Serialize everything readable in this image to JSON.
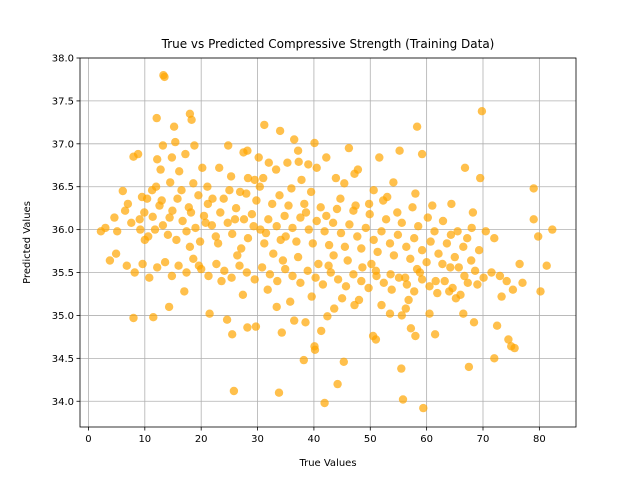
{
  "chart_data": {
    "type": "scatter",
    "title": "True vs Predicted Compressive Strength (Training Data)",
    "xlabel": "True Values",
    "ylabel": "Predicted Values",
    "xlim": [
      -1.5,
      86.5
    ],
    "ylim": [
      33.7,
      38.0
    ],
    "x_ticks": [
      "0",
      "10",
      "20",
      "30",
      "40",
      "50",
      "60",
      "70",
      "80"
    ],
    "y_ticks": [
      "34.0",
      "34.5",
      "35.0",
      "35.5",
      "36.0",
      "36.5",
      "37.0",
      "37.5",
      "38.0"
    ],
    "grid": true,
    "marker_color": "#ffa500",
    "marker_alpha": 0.7,
    "points": [
      [
        13.3,
        37.8
      ],
      [
        13.5,
        37.78
      ],
      [
        12.1,
        37.3
      ],
      [
        15.2,
        37.2
      ],
      [
        18.0,
        37.35
      ],
      [
        18.3,
        37.28
      ],
      [
        31.2,
        37.22
      ],
      [
        69.8,
        37.38
      ],
      [
        34.0,
        37.15
      ],
      [
        58.3,
        37.2
      ],
      [
        8.0,
        36.85
      ],
      [
        8.8,
        36.88
      ],
      [
        12.2,
        36.82
      ],
      [
        13.2,
        36.98
      ],
      [
        15.4,
        37.02
      ],
      [
        14.8,
        36.84
      ],
      [
        17.2,
        36.88
      ],
      [
        18.8,
        36.98
      ],
      [
        24.8,
        36.98
      ],
      [
        27.5,
        36.9
      ],
      [
        28.2,
        36.92
      ],
      [
        30.2,
        36.84
      ],
      [
        36.5,
        37.05
      ],
      [
        37.2,
        36.92
      ],
      [
        40.1,
        37.01
      ],
      [
        42.2,
        36.84
      ],
      [
        46.2,
        36.95
      ],
      [
        51.6,
        36.84
      ],
      [
        55.2,
        36.92
      ],
      [
        59.2,
        36.88
      ],
      [
        66.8,
        36.72
      ],
      [
        6.1,
        36.45
      ],
      [
        9.5,
        36.38
      ],
      [
        11.3,
        36.46
      ],
      [
        12.0,
        36.5
      ],
      [
        14.5,
        36.55
      ],
      [
        16.1,
        36.68
      ],
      [
        18.6,
        36.54
      ],
      [
        23.2,
        36.72
      ],
      [
        25.3,
        36.62
      ],
      [
        28.3,
        36.6
      ],
      [
        31.0,
        36.6
      ],
      [
        33.3,
        36.7
      ],
      [
        35.3,
        36.78
      ],
      [
        37.3,
        36.79
      ],
      [
        40.5,
        36.72
      ],
      [
        43.9,
        36.6
      ],
      [
        47.2,
        36.65
      ],
      [
        50.6,
        36.46
      ],
      [
        54.1,
        36.55
      ],
      [
        58.0,
        36.42
      ],
      [
        64.4,
        36.3
      ],
      [
        69.5,
        36.6
      ],
      [
        79.0,
        36.48
      ],
      [
        2.2,
        35.98
      ],
      [
        3.0,
        36.02
      ],
      [
        4.6,
        36.14
      ],
      [
        6.5,
        36.22
      ],
      [
        7.6,
        36.08
      ],
      [
        9.2,
        36.0
      ],
      [
        9.9,
        36.2
      ],
      [
        10.6,
        35.92
      ],
      [
        11.4,
        36.15
      ],
      [
        12.6,
        36.28
      ],
      [
        13.2,
        36.05
      ],
      [
        14.1,
        35.94
      ],
      [
        14.9,
        36.22
      ],
      [
        15.8,
        36.36
      ],
      [
        16.7,
        36.1
      ],
      [
        17.4,
        35.98
      ],
      [
        18.2,
        36.2
      ],
      [
        19.0,
        36.02
      ],
      [
        19.8,
        35.86
      ],
      [
        20.5,
        36.16
      ],
      [
        21.2,
        36.3
      ],
      [
        21.9,
        36.05
      ],
      [
        22.6,
        35.92
      ],
      [
        23.4,
        36.2
      ],
      [
        24.0,
        36.36
      ],
      [
        24.7,
        36.08
      ],
      [
        25.5,
        35.95
      ],
      [
        26.2,
        36.25
      ],
      [
        26.9,
        36.44
      ],
      [
        27.6,
        36.12
      ],
      [
        28.3,
        35.9
      ],
      [
        29.0,
        36.18
      ],
      [
        29.8,
        36.34
      ],
      [
        30.5,
        36.0
      ],
      [
        31.2,
        35.84
      ],
      [
        31.9,
        36.12
      ],
      [
        32.6,
        36.3
      ],
      [
        33.4,
        36.04
      ],
      [
        34.1,
        35.88
      ],
      [
        34.8,
        36.16
      ],
      [
        35.5,
        36.28
      ],
      [
        36.2,
        36.02
      ],
      [
        36.9,
        35.86
      ],
      [
        37.6,
        36.14
      ],
      [
        38.3,
        36.3
      ],
      [
        39.1,
        36.0
      ],
      [
        39.8,
        35.84
      ],
      [
        40.5,
        36.1
      ],
      [
        41.2,
        36.26
      ],
      [
        41.9,
        35.98
      ],
      [
        42.7,
        35.82
      ],
      [
        43.4,
        36.08
      ],
      [
        44.1,
        36.24
      ],
      [
        44.8,
        35.96
      ],
      [
        45.5,
        35.8
      ],
      [
        46.3,
        36.06
      ],
      [
        47.0,
        36.22
      ],
      [
        47.7,
        35.92
      ],
      [
        48.4,
        35.78
      ],
      [
        49.2,
        36.02
      ],
      [
        49.9,
        36.18
      ],
      [
        50.6,
        35.88
      ],
      [
        51.3,
        35.74
      ],
      [
        52.0,
        35.98
      ],
      [
        52.8,
        36.12
      ],
      [
        53.5,
        35.84
      ],
      [
        54.2,
        35.7
      ],
      [
        54.9,
        35.94
      ],
      [
        55.6,
        36.08
      ],
      [
        56.4,
        35.8
      ],
      [
        57.1,
        35.66
      ],
      [
        57.8,
        35.9
      ],
      [
        58.5,
        36.04
      ],
      [
        59.2,
        35.76
      ],
      [
        60.0,
        35.62
      ],
      [
        60.7,
        35.86
      ],
      [
        61.4,
        35.98
      ],
      [
        62.1,
        35.72
      ],
      [
        62.8,
        35.6
      ],
      [
        63.6,
        35.84
      ],
      [
        64.3,
        35.94
      ],
      [
        65.0,
        35.68
      ],
      [
        65.7,
        35.56
      ],
      [
        66.5,
        35.8
      ],
      [
        67.2,
        35.9
      ],
      [
        67.9,
        35.64
      ],
      [
        68.6,
        35.52
      ],
      [
        69.3,
        35.76
      ],
      [
        70.1,
        35.44
      ],
      [
        71.5,
        35.5
      ],
      [
        72.0,
        35.9
      ],
      [
        73.0,
        35.46
      ],
      [
        74.2,
        35.4
      ],
      [
        75.3,
        35.3
      ],
      [
        76.5,
        35.6
      ],
      [
        77.0,
        35.38
      ],
      [
        79.0,
        36.12
      ],
      [
        79.8,
        35.92
      ],
      [
        81.3,
        35.58
      ],
      [
        82.3,
        36.0
      ],
      [
        80.2,
        35.28
      ],
      [
        3.8,
        35.64
      ],
      [
        4.9,
        35.72
      ],
      [
        6.8,
        35.58
      ],
      [
        8.2,
        35.5
      ],
      [
        9.6,
        35.6
      ],
      [
        10.8,
        35.44
      ],
      [
        12.2,
        35.56
      ],
      [
        13.6,
        35.62
      ],
      [
        14.8,
        35.46
      ],
      [
        16.0,
        35.58
      ],
      [
        17.4,
        35.5
      ],
      [
        18.6,
        35.66
      ],
      [
        20.0,
        35.54
      ],
      [
        21.3,
        35.46
      ],
      [
        22.7,
        35.6
      ],
      [
        24.1,
        35.52
      ],
      [
        25.4,
        35.44
      ],
      [
        26.8,
        35.58
      ],
      [
        28.1,
        35.5
      ],
      [
        29.5,
        35.42
      ],
      [
        30.8,
        35.56
      ],
      [
        32.2,
        35.48
      ],
      [
        33.5,
        35.4
      ],
      [
        34.9,
        35.54
      ],
      [
        36.2,
        35.46
      ],
      [
        37.6,
        35.38
      ],
      [
        38.9,
        35.52
      ],
      [
        40.3,
        35.44
      ],
      [
        41.6,
        35.36
      ],
      [
        43.0,
        35.5
      ],
      [
        44.3,
        35.42
      ],
      [
        45.7,
        35.34
      ],
      [
        47.0,
        35.48
      ],
      [
        48.4,
        35.4
      ],
      [
        49.7,
        35.32
      ],
      [
        51.1,
        35.46
      ],
      [
        52.4,
        35.38
      ],
      [
        53.8,
        35.3
      ],
      [
        55.1,
        35.44
      ],
      [
        56.5,
        35.36
      ],
      [
        57.8,
        35.28
      ],
      [
        59.2,
        35.42
      ],
      [
        60.5,
        35.34
      ],
      [
        61.9,
        35.26
      ],
      [
        63.2,
        35.4
      ],
      [
        64.6,
        35.32
      ],
      [
        66.0,
        35.24
      ],
      [
        67.3,
        35.38
      ],
      [
        8.0,
        34.97
      ],
      [
        11.5,
        34.98
      ],
      [
        14.3,
        35.1
      ],
      [
        17.0,
        35.28
      ],
      [
        21.5,
        35.02
      ],
      [
        24.6,
        34.95
      ],
      [
        25.5,
        34.78
      ],
      [
        28.2,
        34.86
      ],
      [
        29.7,
        34.87
      ],
      [
        33.4,
        35.1
      ],
      [
        34.3,
        34.8
      ],
      [
        36.5,
        34.94
      ],
      [
        38.5,
        34.92
      ],
      [
        40.1,
        34.64
      ],
      [
        41.3,
        34.82
      ],
      [
        42.4,
        34.99
      ],
      [
        45.0,
        35.2
      ],
      [
        47.2,
        35.12
      ],
      [
        50.5,
        34.76
      ],
      [
        51.0,
        34.72
      ],
      [
        53.5,
        35.02
      ],
      [
        55.6,
        35.0
      ],
      [
        56.3,
        35.08
      ],
      [
        57.2,
        34.85
      ],
      [
        58.0,
        34.76
      ],
      [
        60.5,
        35.02
      ],
      [
        61.5,
        34.78
      ],
      [
        64.0,
        35.28
      ],
      [
        65.2,
        35.2
      ],
      [
        66.5,
        35.02
      ],
      [
        67.5,
        34.4
      ],
      [
        68.4,
        34.92
      ],
      [
        72.5,
        34.88
      ],
      [
        73.3,
        35.22
      ],
      [
        74.5,
        34.72
      ],
      [
        75.0,
        34.64
      ],
      [
        75.6,
        34.62
      ],
      [
        72.0,
        34.5
      ],
      [
        25.8,
        34.12
      ],
      [
        33.8,
        34.1
      ],
      [
        38.2,
        34.48
      ],
      [
        40.2,
        34.6
      ],
      [
        44.2,
        34.2
      ],
      [
        45.3,
        34.46
      ],
      [
        55.5,
        34.38
      ],
      [
        41.9,
        33.98
      ],
      [
        55.8,
        34.02
      ],
      [
        59.4,
        33.92
      ],
      [
        5.1,
        35.98
      ],
      [
        7.0,
        36.3
      ],
      [
        9.1,
        36.12
      ],
      [
        10.4,
        36.36
      ],
      [
        11.8,
        36.0
      ],
      [
        13.0,
        36.34
      ],
      [
        14.4,
        36.14
      ],
      [
        15.6,
        35.88
      ],
      [
        16.5,
        36.46
      ],
      [
        17.8,
        36.26
      ],
      [
        19.5,
        36.4
      ],
      [
        20.8,
        36.08
      ],
      [
        22.0,
        36.36
      ],
      [
        23.0,
        35.84
      ],
      [
        25.0,
        36.46
      ],
      [
        26.0,
        36.12
      ],
      [
        27.1,
        35.78
      ],
      [
        28.0,
        36.42
      ],
      [
        29.3,
        36.04
      ],
      [
        30.4,
        36.5
      ],
      [
        31.5,
        35.96
      ],
      [
        32.8,
        35.72
      ],
      [
        33.9,
        36.4
      ],
      [
        35.0,
        35.92
      ],
      [
        36.0,
        36.48
      ],
      [
        37.2,
        35.68
      ],
      [
        38.6,
        36.2
      ],
      [
        39.5,
        36.44
      ],
      [
        40.8,
        35.6
      ],
      [
        42.2,
        36.16
      ],
      [
        43.5,
        35.7
      ],
      [
        44.7,
        36.36
      ],
      [
        46.0,
        35.64
      ],
      [
        47.4,
        36.28
      ],
      [
        48.6,
        35.56
      ],
      [
        49.8,
        36.3
      ],
      [
        51.0,
        35.52
      ],
      [
        52.3,
        36.34
      ],
      [
        53.6,
        35.48
      ],
      [
        54.8,
        36.2
      ],
      [
        56.2,
        35.44
      ],
      [
        57.5,
        36.26
      ],
      [
        58.8,
        35.5
      ],
      [
        60.2,
        36.14
      ],
      [
        61.6,
        35.4
      ],
      [
        62.9,
        36.1
      ],
      [
        64.2,
        35.56
      ],
      [
        65.5,
        35.98
      ],
      [
        66.7,
        35.46
      ],
      [
        68.0,
        36.02
      ],
      [
        69.0,
        35.36
      ],
      [
        70.5,
        35.98
      ],
      [
        19.6,
        35.58
      ],
      [
        23.6,
        35.4
      ],
      [
        27.4,
        35.24
      ],
      [
        31.8,
        35.3
      ],
      [
        35.8,
        35.16
      ],
      [
        39.6,
        35.22
      ],
      [
        43.6,
        35.08
      ],
      [
        48.0,
        35.18
      ],
      [
        52.0,
        35.12
      ],
      [
        56.8,
        35.18
      ],
      [
        10.0,
        35.88
      ],
      [
        18.0,
        35.8
      ],
      [
        26.4,
        35.7
      ],
      [
        34.5,
        35.64
      ],
      [
        42.6,
        35.58
      ],
      [
        50.2,
        35.6
      ],
      [
        58.3,
        35.54
      ],
      [
        21.1,
        36.5
      ],
      [
        29.5,
        36.58
      ],
      [
        37.8,
        36.58
      ],
      [
        45.4,
        36.54
      ],
      [
        53.0,
        36.38
      ],
      [
        61.0,
        36.28
      ],
      [
        68.2,
        36.2
      ],
      [
        12.8,
        36.7
      ],
      [
        20.2,
        36.72
      ],
      [
        32.0,
        36.78
      ],
      [
        39.0,
        36.76
      ],
      [
        47.8,
        36.7
      ]
    ]
  }
}
